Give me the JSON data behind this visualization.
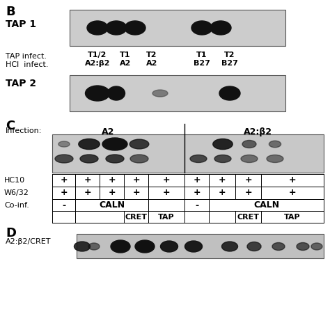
{
  "background_color": "#ffffff",
  "panel_B_label": "B",
  "panel_C_label": "C",
  "panel_D_label": "D",
  "tap1_label": "TAP 1",
  "tap2_label": "TAP 2",
  "tap_infect_label": "TAP infect.",
  "hcl_infect_label": "HCl  infect.",
  "infection_label": "Infection:",
  "infection_A2": "A2",
  "infection_A2b2": "A2:β2",
  "col_labels_tap": [
    "T1/2",
    "T1",
    "T2",
    "T1",
    "T2"
  ],
  "col_labels_hcl": [
    "A2:β2",
    "A2",
    "A2",
    "B27",
    "B27"
  ],
  "hc10_label": "HC10",
  "w632_label": "W6/32",
  "coinf_label": "Co-inf.",
  "caln_label": "CALN",
  "cret_label": "CRET",
  "tap_label": "TAP",
  "minus_label": "-",
  "A2b2cret_label": "A2:β2/CRET",
  "fig_width": 4.74,
  "fig_height": 4.74,
  "dpi": 100
}
